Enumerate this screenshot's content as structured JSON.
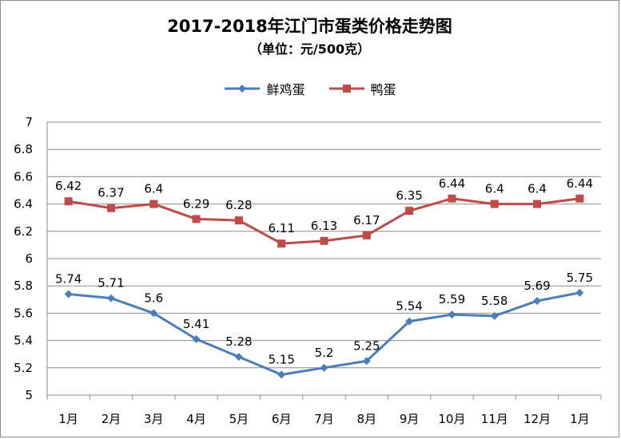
{
  "chart_data": {
    "type": "line",
    "title": "2017-2018年江门市蛋类价格走势图",
    "subtitle": "（单位：元/500克）",
    "categories": [
      "1月",
      "2月",
      "3月",
      "4月",
      "5月",
      "6月",
      "7月",
      "8月",
      "9月",
      "10月",
      "11月",
      "12月",
      "1月"
    ],
    "ylim": [
      5,
      7
    ],
    "yticks": [
      "5",
      "5.2",
      "5.4",
      "5.6",
      "5.8",
      "6",
      "6.2",
      "6.4",
      "6.6",
      "6.8",
      "7"
    ],
    "grid": true,
    "legend_position": "top",
    "series": [
      {
        "name": "鲜鸡蛋",
        "color": "#4a7ebb",
        "marker": "diamond",
        "values": [
          5.74,
          5.71,
          5.6,
          5.41,
          5.28,
          5.15,
          5.2,
          5.25,
          5.54,
          5.59,
          5.58,
          5.69,
          5.75
        ],
        "labels": [
          "5.74",
          "5.71",
          "5.6",
          "5.41",
          "5.28",
          "5.15",
          "5.2",
          "5.25",
          "5.54",
          "5.59",
          "5.58",
          "5.69",
          "5.75"
        ]
      },
      {
        "name": "鸭蛋",
        "color": "#be4b48",
        "marker": "square",
        "values": [
          6.42,
          6.37,
          6.4,
          6.29,
          6.28,
          6.11,
          6.13,
          6.17,
          6.35,
          6.44,
          6.4,
          6.4,
          6.44
        ],
        "labels": [
          "6.42",
          "6.37",
          "6.4",
          "6.29",
          "6.28",
          "6.11",
          "6.13",
          "6.17",
          "6.35",
          "6.44",
          "6.4",
          "6.4",
          "6.44"
        ]
      }
    ]
  }
}
